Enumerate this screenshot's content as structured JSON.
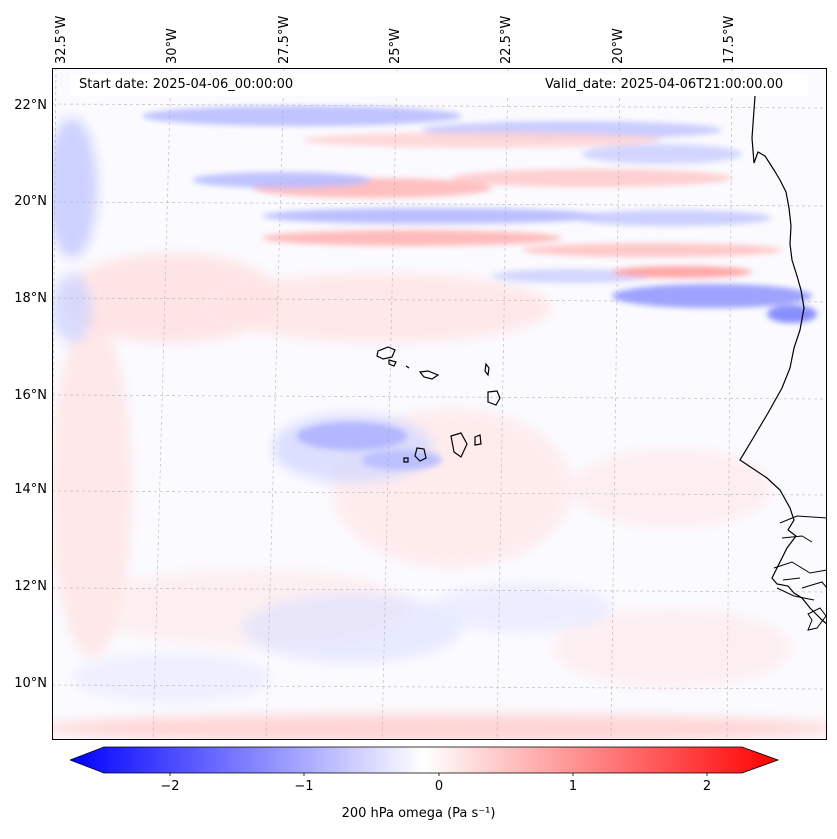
{
  "map": {
    "start_date": "Start date: 2025-04-06_00:00:00",
    "valid_date": "Valid_date: 2025-04-06T21:00:00.00",
    "lon_labels": [
      "32.5°W",
      "30°W",
      "27.5°W",
      "25°W",
      "22.5°W",
      "20°W",
      "17.5°W"
    ],
    "lat_labels": [
      "22°N",
      "20°N",
      "18°N",
      "16°N",
      "14°N",
      "12°N",
      "10°N"
    ],
    "colors": {
      "positive": "#ff0000",
      "negative": "#0000ff",
      "neutral": "#ffffff",
      "coast": "#000000"
    }
  },
  "colorbar": {
    "label": "200 hPa omega (Pa s⁻¹)",
    "ticks": [
      "−2",
      "−1",
      "0",
      "1",
      "2"
    ],
    "tick_values": [
      -2,
      -1,
      0,
      1,
      2
    ],
    "range": [
      -2.5,
      2.5
    ]
  }
}
